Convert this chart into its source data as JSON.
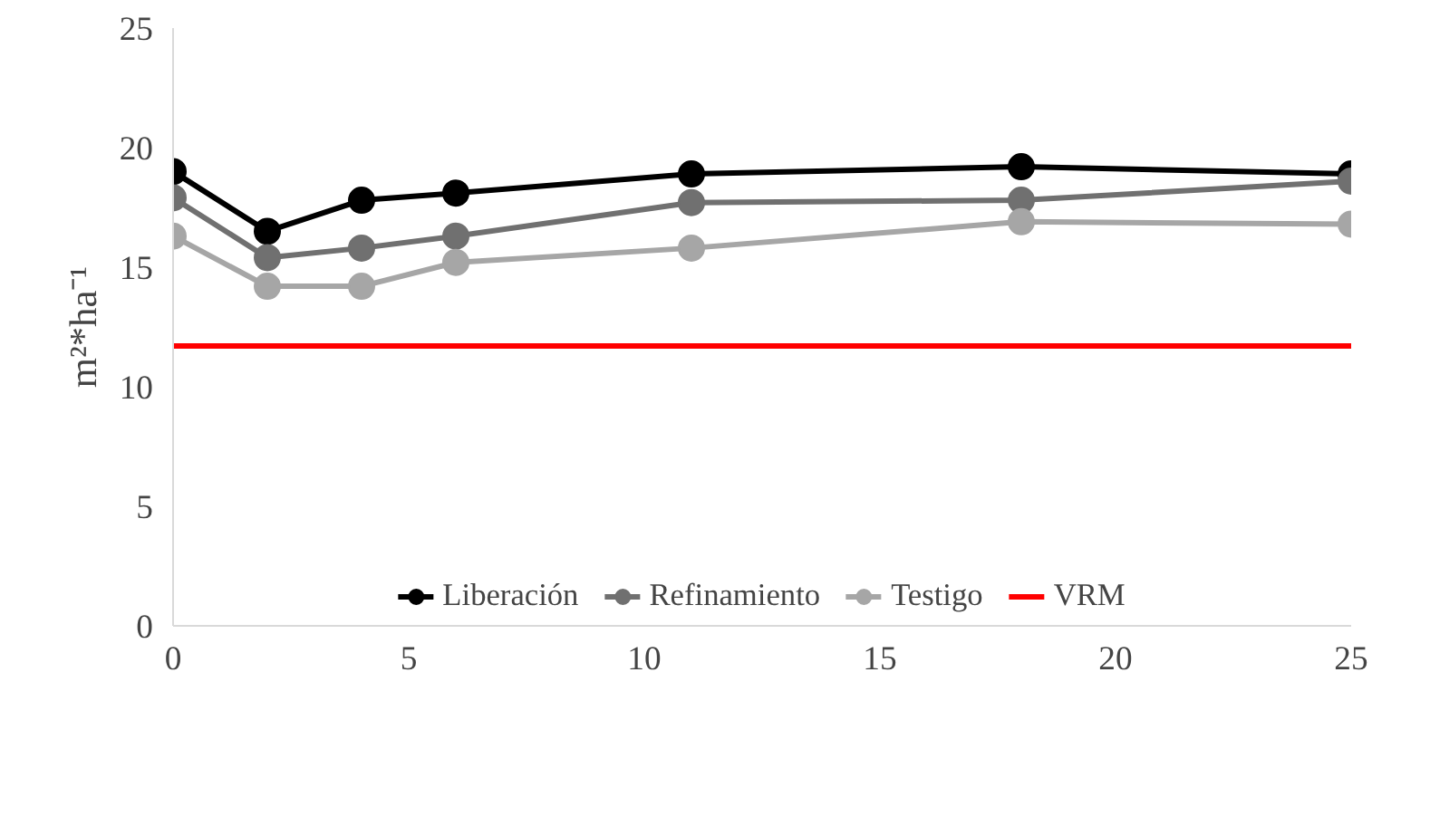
{
  "chart_data": {
    "type": "line",
    "ylabel": "m²*ha⁻¹",
    "x": [
      0,
      2,
      4,
      6,
      11,
      18,
      25
    ],
    "series": [
      {
        "name": "Liberación",
        "color": "#000000",
        "values": [
          19.0,
          16.5,
          17.8,
          18.1,
          18.9,
          19.2,
          18.9
        ]
      },
      {
        "name": "Refinamiento",
        "color": "#707070",
        "values": [
          17.9,
          15.4,
          15.8,
          16.3,
          17.7,
          17.8,
          18.6
        ]
      },
      {
        "name": "Testigo",
        "color": "#a6a6a6",
        "values": [
          16.3,
          14.2,
          14.2,
          15.2,
          15.8,
          16.9,
          16.8
        ]
      },
      {
        "name": "VRM",
        "color": "#ff0000",
        "x": [
          0,
          25
        ],
        "values": [
          11.7,
          11.7
        ],
        "marker": "none"
      }
    ],
    "xlim": [
      0,
      25
    ],
    "ylim": [
      0,
      25
    ],
    "xticks": [
      0,
      5,
      10,
      15,
      20,
      25
    ],
    "yticks": [
      0,
      5,
      10,
      15,
      20,
      25
    ],
    "grid": false,
    "legend": "bottom",
    "marker": "circle",
    "line_style": "solid"
  }
}
